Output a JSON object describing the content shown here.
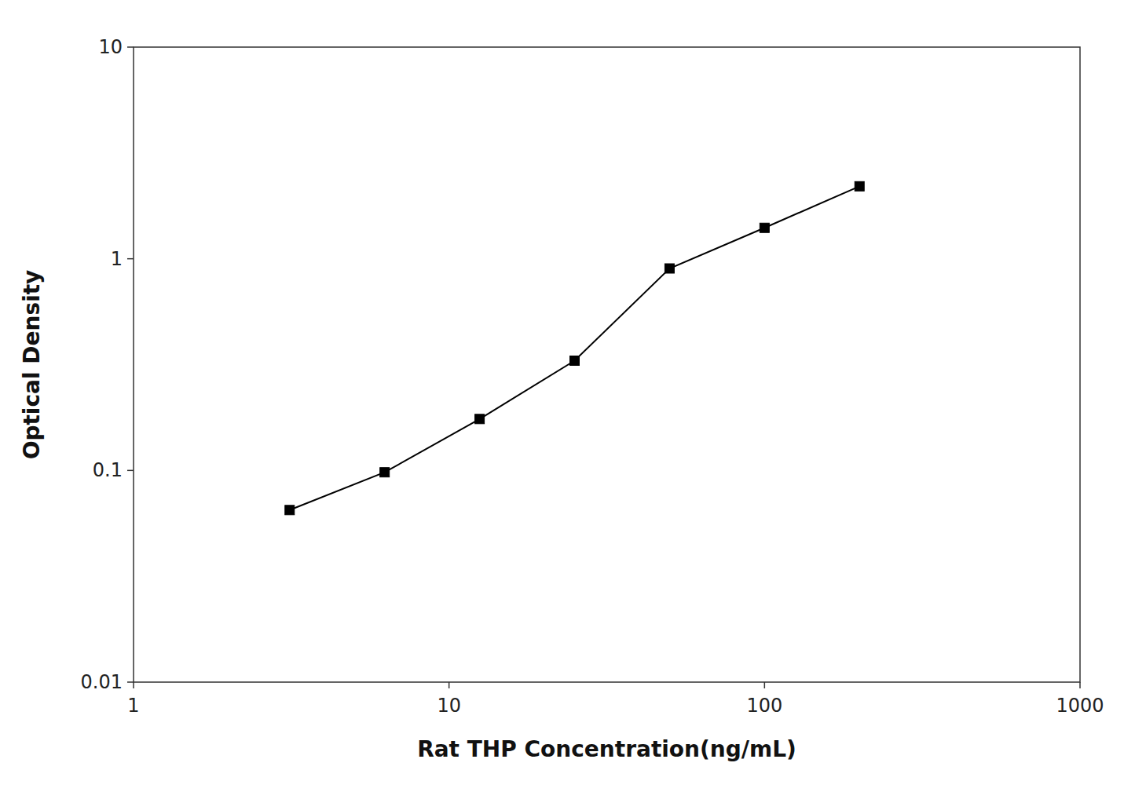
{
  "chart_data": {
    "type": "line",
    "x": [
      3.125,
      6.25,
      12.5,
      25,
      50,
      100,
      200
    ],
    "values": [
      0.065,
      0.098,
      0.175,
      0.33,
      0.9,
      1.4,
      2.2
    ],
    "xlabel": "Rat THP Concentration(ng/mL)",
    "ylabel": "Optical Density",
    "xlim": [
      1,
      1000
    ],
    "ylim": [
      0.01,
      10
    ],
    "xticks": [
      1,
      10,
      100,
      1000
    ],
    "yticks": [
      0.01,
      0.1,
      1,
      10
    ],
    "log": true,
    "grid": false,
    "color": "#000000",
    "marker": "square"
  }
}
